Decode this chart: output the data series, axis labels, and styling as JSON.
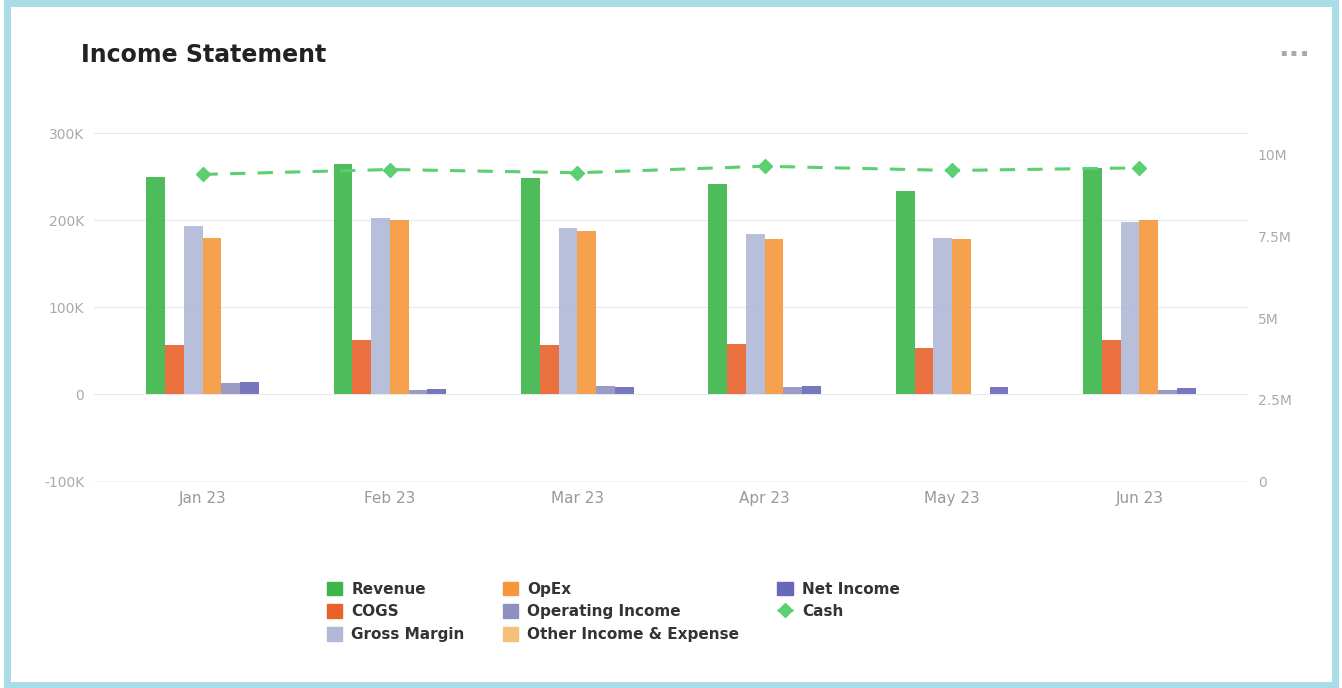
{
  "title": "Income Statement",
  "categories": [
    "Jan 23",
    "Feb 23",
    "Mar 23",
    "Apr 23",
    "May 23",
    "Jun 23"
  ],
  "revenue": [
    250000,
    265000,
    248000,
    242000,
    233000,
    260000
  ],
  "cogs": [
    57000,
    63000,
    57000,
    58000,
    53000,
    62000
  ],
  "gross_margin": [
    193000,
    202000,
    191000,
    184000,
    180000,
    198000
  ],
  "opex": [
    180000,
    200000,
    188000,
    178000,
    178000,
    200000
  ],
  "operating_income": [
    13000,
    5000,
    10000,
    8000,
    0,
    5000
  ],
  "other_inc_exp": [
    1000,
    -2000,
    0,
    1000,
    3000,
    1000
  ],
  "net_income": [
    14000,
    6000,
    9000,
    10000,
    8000,
    7000
  ],
  "cash": [
    9400000,
    9550000,
    9450000,
    9650000,
    9520000,
    9600000
  ],
  "colors": {
    "revenue": "#3cb54a",
    "cogs": "#e8622a",
    "gross_margin": "#b0b8d8",
    "opex": "#f5973a",
    "operating_income": "#9090c0",
    "other_inc_exp": "#f5c07a",
    "net_income": "#6868b8",
    "cash": "#5ccf70"
  },
  "ylim_left": [
    -100000,
    350000
  ],
  "ylim_right": [
    0,
    12000000
  ],
  "yticks_left": [
    -100000,
    0,
    100000,
    200000,
    300000
  ],
  "ytick_labels_left": [
    "-100K",
    "0",
    "100K",
    "200K",
    "300K"
  ],
  "yticks_right": [
    0,
    2500000,
    5000000,
    7500000,
    10000000
  ],
  "ytick_labels_right": [
    "0",
    "2.5M",
    "5M",
    "7.5M",
    "10M"
  ],
  "background_color": "#ffffff",
  "border_color": "#a8dde8"
}
